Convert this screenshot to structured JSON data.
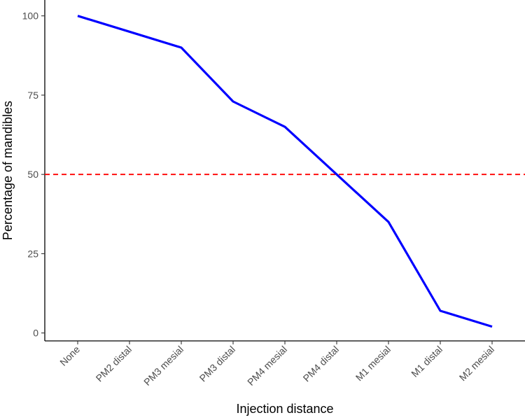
{
  "chart_data": {
    "type": "line",
    "xlabel": "Injection distance",
    "ylabel": "Percentage of mandibles",
    "categories": [
      "None",
      "PM2 distal",
      "PM3 mesial",
      "PM3 distal",
      "PM4 mesial",
      "PM4 distal",
      "M1 mesial",
      "M1 distal",
      "M2 mesial"
    ],
    "series": [
      {
        "values": [
          100,
          95,
          90,
          73,
          65,
          50,
          35,
          7,
          2
        ],
        "color": "#0000ff"
      }
    ],
    "reference_lines": [
      {
        "orientation": "horizontal",
        "y": 50,
        "color": "#ff0000",
        "style": "dashed"
      }
    ],
    "yticks": [
      0,
      25,
      50,
      75,
      100
    ],
    "ylim": [
      -2.5,
      105
    ],
    "grid": false,
    "legend": "none"
  }
}
